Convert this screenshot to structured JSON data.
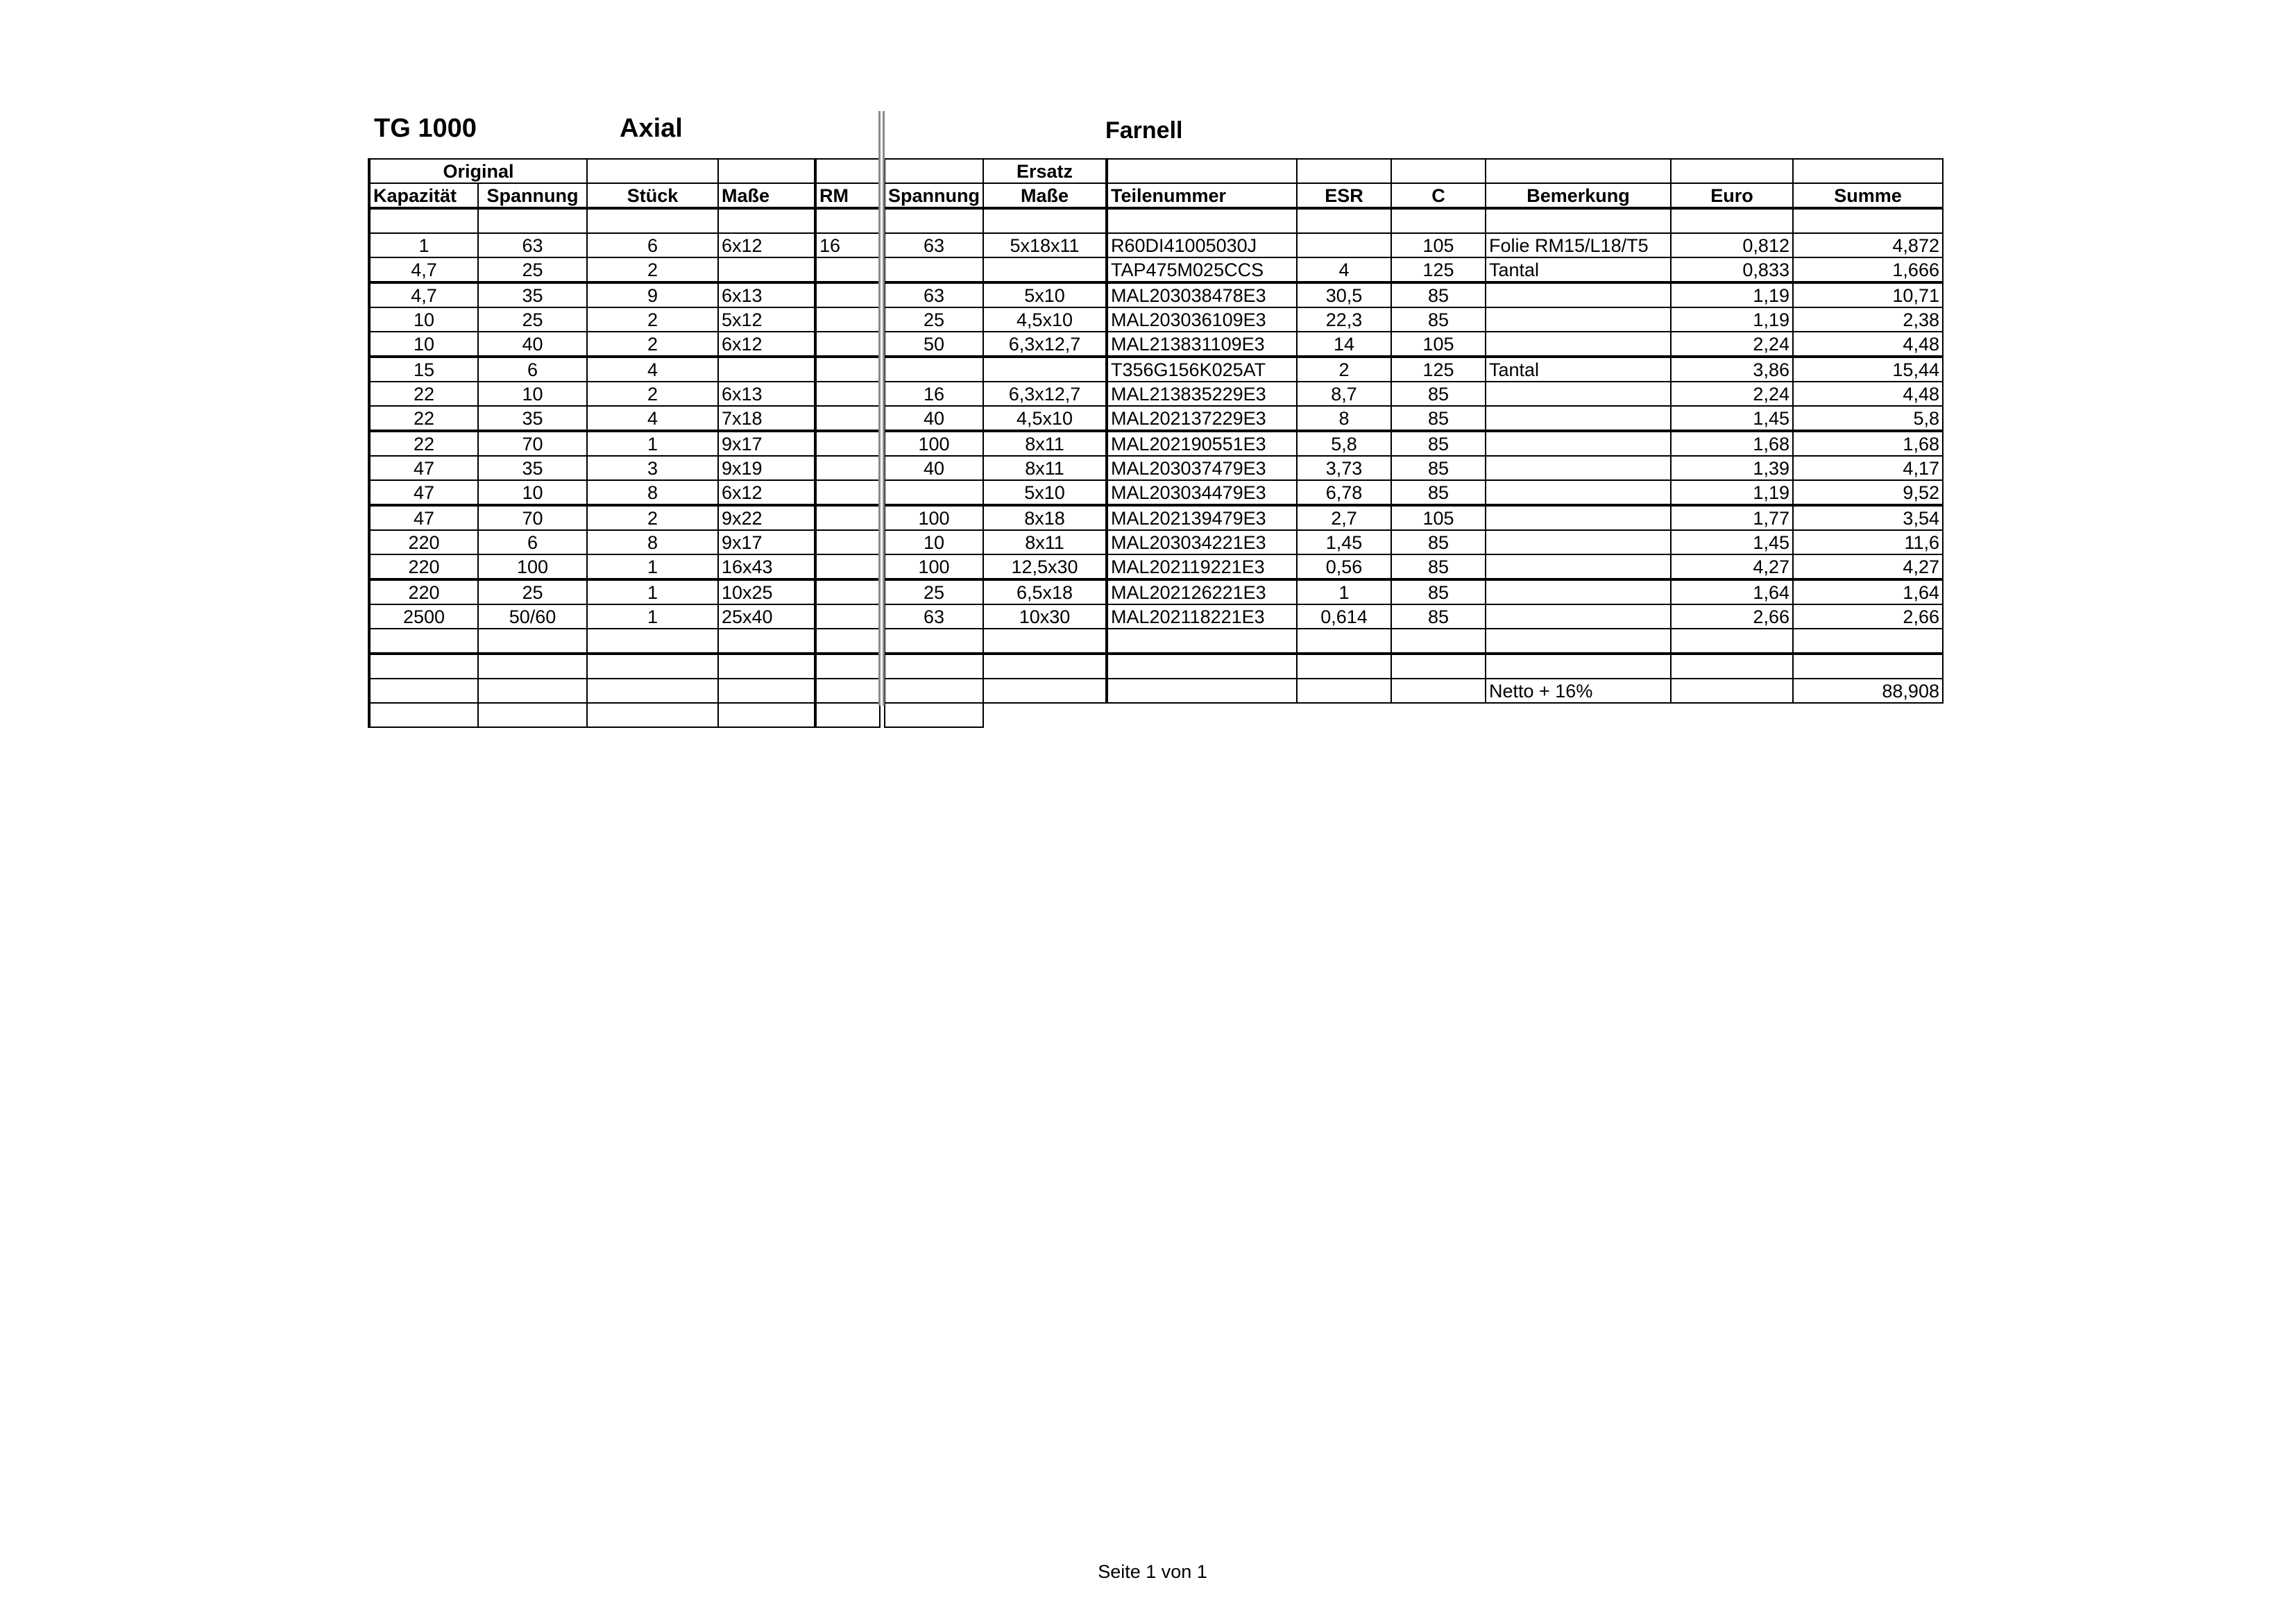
{
  "titles": {
    "model": "TG 1000",
    "type": "Axial",
    "supplier": "Farnell"
  },
  "group_headers": {
    "original": "Original",
    "ersatz": "Ersatz"
  },
  "columns": [
    "Kapazität",
    "Spannung",
    "Stück",
    "Maße",
    "RM",
    "Spannung",
    "Maße",
    "Teilenummer",
    "ESR",
    "C",
    "Bemerkung",
    "Euro",
    "Summe"
  ],
  "rows": [
    [
      "1",
      "63",
      "6",
      "6x12",
      "16",
      "63",
      "5x18x11",
      "R60DI41005030J",
      "",
      "105",
      "Folie RM15/L18/T5",
      "0,812",
      "4,872"
    ],
    [
      "4,7",
      "25",
      "2",
      "",
      "",
      "",
      "",
      "TAP475M025CCS",
      "4",
      "125",
      "Tantal",
      "0,833",
      "1,666"
    ],
    [
      "4,7",
      "35",
      "9",
      "6x13",
      "",
      "63",
      "5x10",
      "MAL203038478E3",
      "30,5",
      "85",
      "",
      "1,19",
      "10,71"
    ],
    [
      "10",
      "25",
      "2",
      "5x12",
      "",
      "25",
      "4,5x10",
      "MAL203036109E3",
      "22,3",
      "85",
      "",
      "1,19",
      "2,38"
    ],
    [
      "10",
      "40",
      "2",
      "6x12",
      "",
      "50",
      "6,3x12,7",
      "MAL213831109E3",
      "14",
      "105",
      "",
      "2,24",
      "4,48"
    ],
    [
      "15",
      "6",
      "4",
      "",
      "",
      "",
      "",
      "T356G156K025AT",
      "2",
      "125",
      "Tantal",
      "3,86",
      "15,44"
    ],
    [
      "22",
      "10",
      "2",
      "6x13",
      "",
      "16",
      "6,3x12,7",
      "MAL213835229E3",
      "8,7",
      "85",
      "",
      "2,24",
      "4,48"
    ],
    [
      "22",
      "35",
      "4",
      "7x18",
      "",
      "40",
      "4,5x10",
      "MAL202137229E3",
      "8",
      "85",
      "",
      "1,45",
      "5,8"
    ],
    [
      "22",
      "70",
      "1",
      "9x17",
      "",
      "100",
      "8x11",
      "MAL202190551E3",
      "5,8",
      "85",
      "",
      "1,68",
      "1,68"
    ],
    [
      "47",
      "35",
      "3",
      "9x19",
      "",
      "40",
      "8x11",
      "MAL203037479E3",
      "3,73",
      "85",
      "",
      "1,39",
      "4,17"
    ],
    [
      "47",
      "10",
      "8",
      "6x12",
      "",
      "",
      "5x10",
      "MAL203034479E3",
      "6,78",
      "85",
      "",
      "1,19",
      "9,52"
    ],
    [
      "47",
      "70",
      "2",
      "9x22",
      "",
      "100",
      "8x18",
      "MAL202139479E3",
      "2,7",
      "105",
      "",
      "1,77",
      "3,54"
    ],
    [
      "220",
      "6",
      "8",
      "9x17",
      "",
      "10",
      "8x11",
      "MAL203034221E3",
      "1,45",
      "85",
      "",
      "1,45",
      "11,6"
    ],
    [
      "220",
      "100",
      "1",
      "16x43",
      "",
      "100",
      "12,5x30",
      "MAL202119221E3",
      "0,56",
      "85",
      "",
      "4,27",
      "4,27"
    ],
    [
      "220",
      "25",
      "1",
      "10x25",
      "",
      "25",
      "6,5x18",
      "MAL202126221E3",
      "1",
      "85",
      "",
      "1,64",
      "1,64"
    ],
    [
      "2500",
      "50/60",
      "1",
      "25x40",
      "",
      "63",
      "10x30",
      "MAL202118221E3",
      "0,614",
      "85",
      "",
      "2,66",
      "2,66"
    ]
  ],
  "total": {
    "label": "Netto + 16%",
    "value": "88,908"
  },
  "footer": "Seite 1 von 1"
}
